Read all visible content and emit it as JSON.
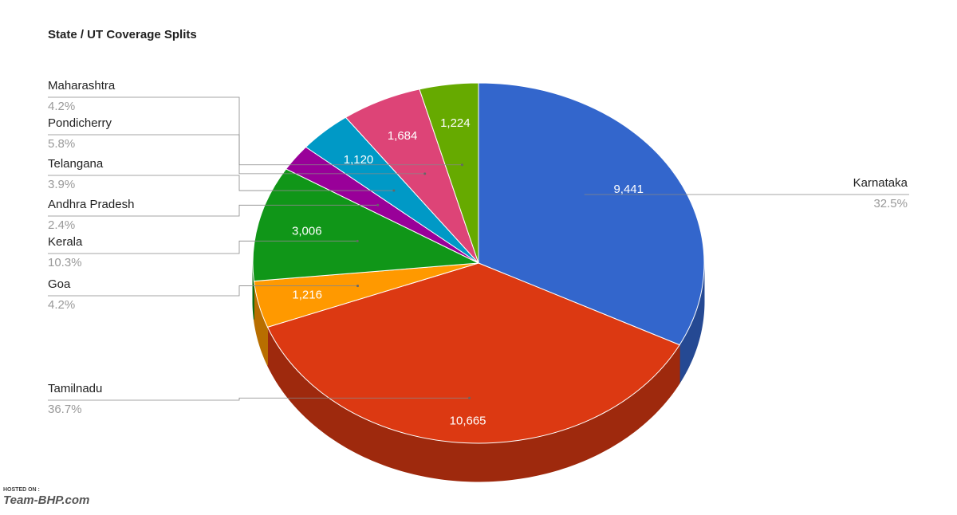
{
  "chart_data": {
    "type": "pie",
    "title": "State / UT Coverage Splits",
    "categories": [
      "Karnataka",
      "Tamilnadu",
      "Goa",
      "Kerala",
      "Andhra Pradesh",
      "Telangana",
      "Pondicherry",
      "Maharashtra"
    ],
    "values": [
      9441,
      10665,
      1216,
      3006,
      693,
      1120,
      1684,
      1224
    ],
    "value_labels": [
      "9,441",
      "10,665",
      "1,216",
      "3,006",
      null,
      "1,120",
      "1,684",
      "1,224"
    ],
    "percent_labels": [
      "32.5%",
      "36.7%",
      "4.2%",
      "10.3%",
      "2.4%",
      "3.9%",
      "5.8%",
      "4.2%"
    ],
    "colors": [
      "#3366cc",
      "#dc3912",
      "#ff9900",
      "#109618",
      "#990099",
      "#0099c6",
      "#dd4477",
      "#66aa00"
    ],
    "watermark": [
      "HOSTED ON :",
      "Team-BHP.com"
    ]
  }
}
